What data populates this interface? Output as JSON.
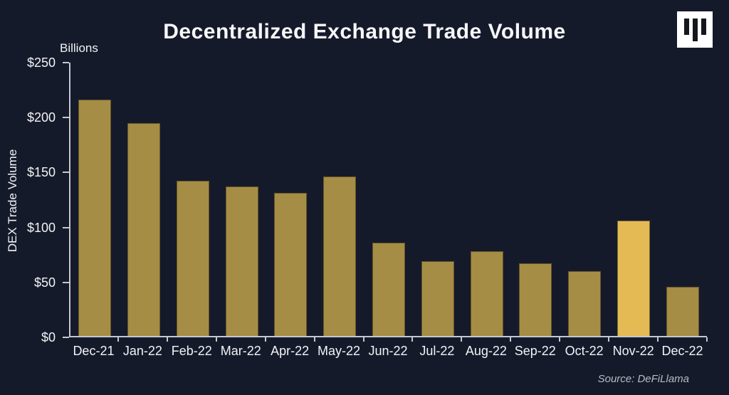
{
  "header": {
    "title": "Decentralized Exchange Trade Volume"
  },
  "logo": {
    "name": "blockworks-logo"
  },
  "footer": {
    "source": "Source: DeFiLlama"
  },
  "chart_data": {
    "type": "bar",
    "title": "Decentralized Exchange Trade Volume",
    "units_label": "Billions",
    "xlabel": "",
    "ylabel": "DEX Trade Volume",
    "source": "Source: DeFiLlama",
    "categories": [
      "Dec-21",
      "Jan-22",
      "Feb-22",
      "Mar-22",
      "Apr-22",
      "May-22",
      "Jun-22",
      "Jul-22",
      "Aug-22",
      "Sep-22",
      "Oct-22",
      "Nov-22",
      "Dec-22"
    ],
    "values": [
      215,
      194,
      141,
      136,
      130,
      145,
      85,
      68,
      77,
      66,
      59,
      105,
      45
    ],
    "highlight_category": "Nov-22",
    "highlight_index": 11,
    "ylim": [
      0,
      250
    ],
    "y_ticks": [
      "$0",
      "$50",
      "$100",
      "$150",
      "$200",
      "$250"
    ],
    "y_tick_values": [
      0,
      50,
      100,
      150,
      200,
      250
    ],
    "grid": false,
    "legend": false,
    "colors": {
      "background": "#151a2b",
      "bar": "#a68d45",
      "bar_highlight": "#e4ba55",
      "axis": "#c5c7d1",
      "text": "#f2f3f5",
      "source_text": "#b9bac2",
      "logo_bg": "#ffffff",
      "logo_bars": "#16161e"
    }
  }
}
